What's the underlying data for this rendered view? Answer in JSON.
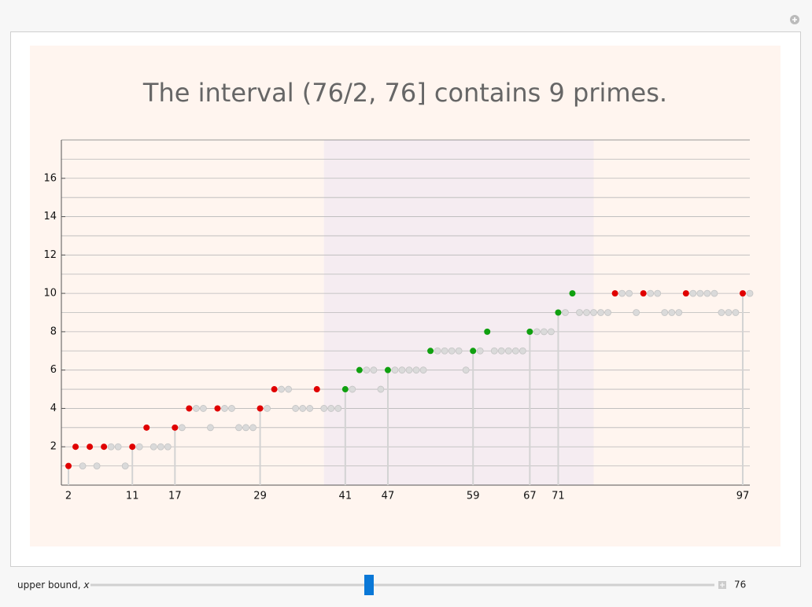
{
  "chart_data": {
    "type": "scatter",
    "title": "The interval (76/2, 76] contains 9 primes.",
    "xlim": [
      1,
      98
    ],
    "ylim": [
      0,
      18
    ],
    "xticks": [
      2,
      11,
      17,
      29,
      41,
      47,
      59,
      67,
      71,
      97
    ],
    "yticks": [
      2,
      4,
      6,
      8,
      10,
      12,
      14,
      16
    ],
    "ygrid": [
      1,
      2,
      3,
      4,
      5,
      6,
      7,
      8,
      9,
      10,
      11,
      12,
      13,
      14,
      15,
      16,
      17
    ],
    "highlight": [
      38,
      76
    ],
    "highlight_color": "#f5ecf1",
    "series": [
      {
        "color": "#e00000",
        "x": [
          2,
          3,
          5,
          7,
          11,
          13,
          17,
          19,
          23,
          29,
          31,
          37,
          79,
          83,
          89,
          97
        ],
        "values": [
          1,
          2,
          2,
          2,
          2,
          3,
          3,
          4,
          4,
          4,
          5,
          5,
          10,
          10,
          10,
          10
        ]
      },
      {
        "color": "#10a010",
        "x": [
          41,
          43,
          47,
          53,
          59,
          61,
          67,
          71,
          73
        ],
        "values": [
          5,
          6,
          6,
          7,
          7,
          8,
          8,
          9,
          10
        ]
      },
      {
        "color": "#dadada",
        "x": [
          4,
          6,
          8,
          9,
          10,
          12,
          14,
          15,
          16,
          18,
          20,
          21,
          22,
          24,
          25,
          26,
          27,
          28,
          30,
          32,
          33,
          34,
          35,
          36,
          38,
          39,
          40,
          42,
          44,
          45,
          46,
          48,
          49,
          50,
          51,
          52,
          54,
          55,
          56,
          57,
          58,
          60,
          62,
          63,
          64,
          65,
          66,
          68,
          69,
          70,
          72,
          74,
          75,
          76,
          77,
          78,
          80,
          81,
          82,
          84,
          85,
          86,
          87,
          88,
          90,
          91,
          92,
          93,
          94,
          95,
          96,
          98
        ],
        "values": [
          1,
          1,
          2,
          2,
          1,
          2,
          2,
          2,
          2,
          3,
          4,
          4,
          3,
          4,
          4,
          3,
          3,
          3,
          4,
          5,
          5,
          4,
          4,
          4,
          4,
          4,
          4,
          5,
          6,
          6,
          5,
          6,
          6,
          6,
          6,
          6,
          7,
          7,
          7,
          7,
          6,
          7,
          7,
          7,
          7,
          7,
          7,
          8,
          8,
          8,
          9,
          9,
          9,
          9,
          9,
          9,
          10,
          10,
          9,
          10,
          10,
          9,
          9,
          9,
          10,
          10,
          10,
          10,
          9,
          9,
          9,
          10
        ]
      }
    ]
  },
  "controls": {
    "label": "upper bound, ",
    "variable": "x",
    "value": 76
  }
}
